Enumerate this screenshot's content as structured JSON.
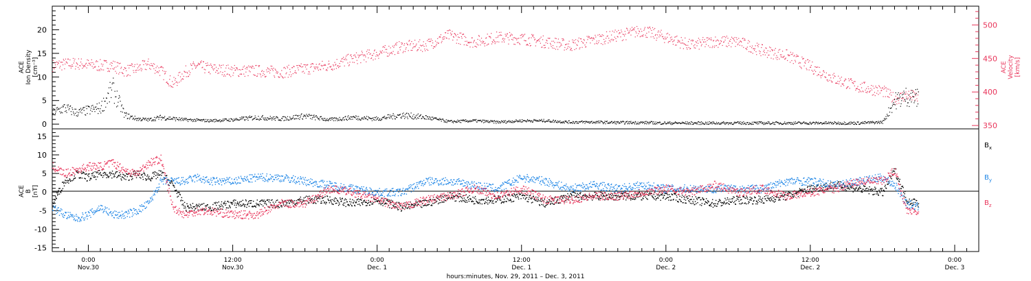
{
  "colors": {
    "black": "#000000",
    "pink": "#e8345a",
    "blue": "#1f86e6",
    "grid": "#000000"
  },
  "xaxis": {
    "title": "hours:minutes, Nov. 29, 2011 – Dec. 3, 2011",
    "ticks": [
      {
        "time": "0:00",
        "date": "Nov.30"
      },
      {
        "time": "12:00",
        "date": "Nov.30"
      },
      {
        "time": "0:00",
        "date": "Dec. 1"
      },
      {
        "time": "12:00",
        "date": "Dec. 1"
      },
      {
        "time": "0:00",
        "date": "Dec. 2"
      },
      {
        "time": "12:00",
        "date": "Dec. 2"
      },
      {
        "time": "0:00",
        "date": "Dec. 3"
      }
    ]
  },
  "panel_top": {
    "left_label": [
      "ACE",
      "Ion Density",
      "[cm⁻³]"
    ],
    "right_label": [
      "ACE",
      "Velocity",
      "[km/s]"
    ],
    "left_ticks": [
      "0",
      "5",
      "10",
      "15",
      "20"
    ],
    "right_ticks": [
      "350",
      "400",
      "450",
      "500"
    ]
  },
  "panel_bottom": {
    "left_label": [
      "ACE",
      "B",
      "[nT]"
    ],
    "left_ticks": [
      "-15",
      "-10",
      "-5",
      "0",
      "5",
      "10",
      "15"
    ],
    "legend": [
      {
        "label": "B",
        "sub": "x",
        "color": "#000000"
      },
      {
        "label": "B",
        "sub": "y",
        "color": "#1f86e6"
      },
      {
        "label": "B",
        "sub": "z",
        "color": "#e8345a"
      }
    ]
  },
  "chart_data": [
    {
      "type": "scatter",
      "title": "",
      "xlabel": "hours:minutes, Nov. 29, 2011 – Dec. 3, 2011",
      "xlim": [
        "2011-11-29 21:00",
        "2011-12-03 02:00"
      ],
      "series": [
        {
          "name": "",
          "axis": "left",
          "ylabel": "ACE Ion Density [cm⁻³]",
          "ylim": [
            -1,
            25
          ],
          "color": "#000000",
          "x_hours": [
            21,
            22,
            23,
            24,
            25,
            26,
            27,
            28,
            29,
            30,
            32,
            34,
            36,
            38,
            40,
            42,
            44,
            46,
            48,
            50,
            52,
            54,
            56,
            58,
            60,
            62,
            64,
            66,
            68,
            70,
            72,
            74,
            76,
            78,
            80,
            82,
            84,
            86,
            88,
            90,
            91,
            92,
            93
          ],
          "y": [
            2.5,
            3.5,
            2.5,
            3,
            3.5,
            7.5,
            2,
            1.2,
            1,
            1.5,
            1,
            0.8,
            1,
            1.5,
            1.2,
            1.8,
            1,
            1.5,
            1.2,
            2,
            1.5,
            0.6,
            0.8,
            0.5,
            0.8,
            0.8,
            0.5,
            0.5,
            0.4,
            0.4,
            0.3,
            0.3,
            0.3,
            0.3,
            0.3,
            0.3,
            0.3,
            0.3,
            0.3,
            0.5,
            5,
            6,
            5.5
          ]
        },
        {
          "name": "",
          "axis": "right",
          "ylabel": "ACE Velocity [km/s]",
          "ylim": [
            345,
            528
          ],
          "color": "#e8345a",
          "x_hours": [
            21,
            22,
            23,
            24,
            25,
            26,
            27,
            28,
            29,
            30,
            31,
            32,
            33,
            34,
            36,
            38,
            40,
            42,
            44,
            46,
            48,
            50,
            52,
            54,
            56,
            58,
            60,
            62,
            64,
            66,
            68,
            70,
            72,
            74,
            76,
            78,
            80,
            82,
            84,
            86,
            88,
            90,
            91,
            92,
            93
          ],
          "y": [
            440,
            442,
            443,
            441,
            440,
            440,
            432,
            435,
            442,
            432,
            412,
            430,
            440,
            435,
            432,
            432,
            430,
            435,
            440,
            450,
            458,
            468,
            470,
            485,
            475,
            482,
            480,
            475,
            470,
            478,
            485,
            492,
            482,
            470,
            476,
            475,
            462,
            455,
            438,
            420,
            408,
            402,
            390,
            396,
            392
          ]
        }
      ]
    },
    {
      "type": "line",
      "title": "",
      "xlabel": "hours:minutes, Nov. 29, 2011 – Dec. 3, 2011",
      "ylabel": "ACE B [nT]",
      "ylim": [
        -16,
        17
      ],
      "series": [
        {
          "name": "Bx",
          "color": "#000000",
          "x_hours": [
            21,
            22,
            23,
            24,
            25,
            26,
            27,
            28,
            29,
            30,
            31,
            32,
            33,
            34,
            36,
            38,
            40,
            42,
            44,
            46,
            48,
            50,
            52,
            54,
            56,
            58,
            60,
            62,
            64,
            66,
            68,
            70,
            72,
            74,
            76,
            78,
            80,
            82,
            84,
            86,
            88,
            90,
            91,
            92,
            93
          ],
          "y": [
            -3,
            3,
            5,
            4,
            5,
            5,
            4,
            5,
            4,
            5,
            2,
            -4,
            -4,
            -4,
            -3,
            -3,
            -3,
            -2,
            -2,
            -3,
            -2,
            -4,
            -3,
            -1,
            -2,
            -2,
            -1,
            -3,
            -1,
            -1,
            -1,
            -1,
            -1,
            -2,
            -3,
            -2,
            -2,
            -1,
            1,
            2,
            1,
            0,
            6,
            -2,
            -3
          ]
        },
        {
          "name": "By",
          "color": "#1f86e6",
          "x_hours": [
            21,
            22,
            23,
            24,
            25,
            26,
            27,
            28,
            29,
            30,
            31,
            32,
            33,
            34,
            36,
            38,
            40,
            42,
            44,
            46,
            48,
            50,
            52,
            54,
            56,
            58,
            60,
            62,
            64,
            66,
            68,
            70,
            72,
            74,
            76,
            78,
            80,
            82,
            84,
            86,
            88,
            90,
            91,
            92,
            93
          ],
          "y": [
            -4,
            -6,
            -7,
            -6,
            -4,
            -6,
            -6,
            -5,
            -3,
            3,
            3,
            3,
            4,
            3,
            3,
            4,
            4,
            3,
            2,
            1,
            0,
            0,
            3,
            3,
            2,
            1,
            4,
            3,
            1,
            2,
            1,
            2,
            1,
            1,
            1,
            1,
            1,
            3,
            3,
            2,
            3,
            4,
            2,
            -3,
            -4
          ]
        },
        {
          "name": "Bz",
          "color": "#e8345a",
          "x_hours": [
            21,
            22,
            23,
            24,
            25,
            26,
            27,
            28,
            29,
            30,
            31,
            32,
            33,
            34,
            36,
            38,
            40,
            42,
            44,
            46,
            48,
            50,
            52,
            54,
            56,
            58,
            60,
            62,
            64,
            66,
            68,
            70,
            72,
            74,
            76,
            78,
            80,
            82,
            84,
            86,
            88,
            90,
            91,
            92,
            93
          ],
          "y": [
            7,
            5,
            6,
            7,
            7,
            8,
            6,
            5,
            8,
            9,
            -4,
            -6,
            -5,
            -5,
            -6,
            -6,
            -3,
            -3,
            1,
            0,
            -2,
            -4,
            -2,
            -1,
            1,
            -1,
            1,
            -2,
            -2,
            -1,
            -1,
            0,
            1,
            0,
            2,
            0,
            1,
            -1,
            0,
            1,
            3,
            3,
            6,
            -5,
            -5
          ]
        }
      ]
    }
  ]
}
